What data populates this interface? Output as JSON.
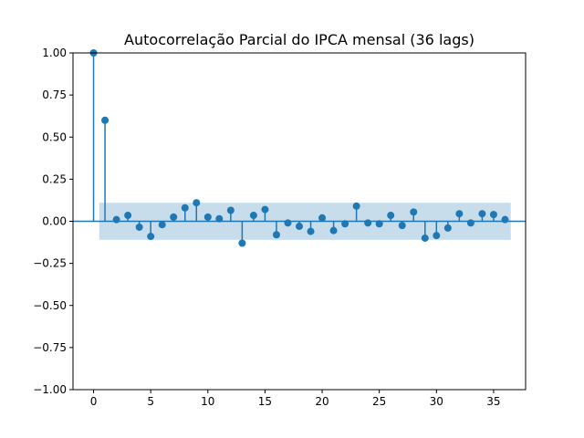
{
  "chart_data": {
    "type": "stem",
    "title": "Autocorrelação Parcial do IPCA mensal (36 lags)",
    "xlabel": "",
    "ylabel": "",
    "xlim": [
      -1.8,
      37.8
    ],
    "ylim": [
      -1.0,
      1.0
    ],
    "x_ticks": [
      0,
      5,
      10,
      15,
      20,
      25,
      30,
      35
    ],
    "x_tick_labels": [
      "0",
      "5",
      "10",
      "15",
      "20",
      "25",
      "30",
      "35"
    ],
    "y_ticks": [
      1.0,
      0.75,
      0.5,
      0.25,
      0.0,
      -0.25,
      -0.5,
      -0.75,
      -1.0
    ],
    "y_tick_labels": [
      "1.00",
      "0.75",
      "0.50",
      "0.25",
      "0.00",
      "−0.25",
      "−0.50",
      "−0.75",
      "−1.00"
    ],
    "lags": [
      0,
      1,
      2,
      3,
      4,
      5,
      6,
      7,
      8,
      9,
      10,
      11,
      12,
      13,
      14,
      15,
      16,
      17,
      18,
      19,
      20,
      21,
      22,
      23,
      24,
      25,
      26,
      27,
      28,
      29,
      30,
      31,
      32,
      33,
      34,
      35,
      36
    ],
    "values": [
      1.0,
      0.6,
      0.01,
      0.035,
      -0.035,
      -0.09,
      -0.02,
      0.025,
      0.08,
      0.11,
      0.025,
      0.015,
      0.065,
      -0.13,
      0.035,
      0.07,
      -0.08,
      -0.01,
      -0.03,
      -0.06,
      0.02,
      -0.055,
      -0.015,
      0.09,
      -0.01,
      -0.015,
      0.035,
      -0.025,
      0.055,
      -0.1,
      -0.085,
      -0.04,
      0.045,
      -0.01,
      0.045,
      0.04,
      0.01
    ],
    "confidence_band": {
      "x_range": [
        0.5,
        36.5
      ],
      "lower": -0.11,
      "upper": 0.11
    },
    "grid": false,
    "colors": {
      "marker": "#1f77b4",
      "band": "#1f77b4",
      "zero_line": "#1f77b4",
      "axes": "#000000"
    }
  }
}
